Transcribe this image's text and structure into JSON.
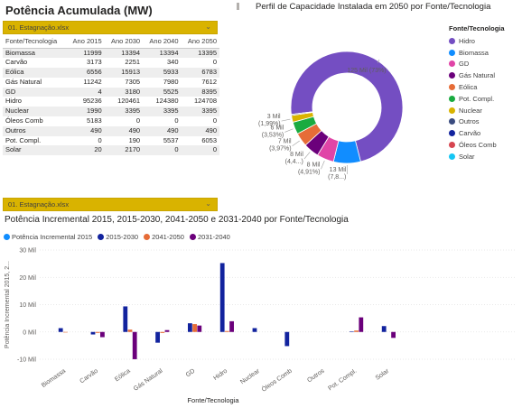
{
  "left_panel": {
    "title": "Potência Acumulada (MW)",
    "slicer_value": "01. Estagnação.xlsx",
    "table": {
      "headers": [
        "Fonte/Tecnologia",
        "Ano 2015",
        "Ano 2030",
        "Ano 2040",
        "Ano 2050"
      ],
      "rows": [
        [
          "Biomassa",
          "11999",
          "13394",
          "13394",
          "13395"
        ],
        [
          "Carvão",
          "3173",
          "2251",
          "340",
          "0"
        ],
        [
          "Eólica",
          "6556",
          "15913",
          "5933",
          "6783"
        ],
        [
          "Gás Natural",
          "11242",
          "7305",
          "7980",
          "7612"
        ],
        [
          "GD",
          "4",
          "3180",
          "5525",
          "8395"
        ],
        [
          "Hidro",
          "95236",
          "120461",
          "124380",
          "124708"
        ],
        [
          "Nuclear",
          "1990",
          "3395",
          "3395",
          "3395"
        ],
        [
          "Óleos Comb",
          "5183",
          "0",
          "0",
          "0"
        ],
        [
          "Outros",
          "490",
          "490",
          "490",
          "490"
        ],
        [
          "Pot. Compl.",
          "0",
          "190",
          "5537",
          "6053"
        ],
        [
          "Solar",
          "20",
          "2170",
          "0",
          "0"
        ]
      ]
    }
  },
  "bottom_slicer_value": "01. Estagnação.xlsx",
  "colors": {
    "Hidro": "#744ec2",
    "Biomassa": "#118dff",
    "GD": "#e044a7",
    "Gás Natural": "#6b007b",
    "Eólica": "#e66c37",
    "Pot. Compl.": "#1aab40",
    "Nuclear": "#d9b300",
    "Outros": "#3a4b7f",
    "Carvão": "#12239e",
    "Óleos Comb": "#d64550",
    "Solar": "#15c6f4",
    "s2015": "#118dff",
    "s2015_2030": "#12239e",
    "s2041_2050": "#e66c37",
    "s2031_2040": "#6b007b",
    "slicer": "#d9b300"
  },
  "chart_data": [
    {
      "type": "pie",
      "title": "Perfil de Capacidade Instalada em 2050 por Fonte/Tecnologia",
      "legend_title": "Fonte/Tecnologia",
      "legend_position": "right",
      "donut": true,
      "slices": [
        {
          "name": "Hidro",
          "value": 124708,
          "label": "125 Mil (73%)"
        },
        {
          "name": "Biomassa",
          "value": 13395,
          "label": "13 Mil (7,8...)"
        },
        {
          "name": "GD",
          "value": 8395,
          "label": "8 Mil (4,91%)"
        },
        {
          "name": "Gás Natural",
          "value": 7612,
          "label": "8 Mil (4,4...)"
        },
        {
          "name": "Eólica",
          "value": 6783,
          "label": "7 Mil (3,97%)"
        },
        {
          "name": "Pot. Compl.",
          "value": 6053,
          "label": "6 Mil (3,53%)"
        },
        {
          "name": "Nuclear",
          "value": 3395,
          "label": "3 Mil (1,99%)"
        },
        {
          "name": "Outros",
          "value": 490,
          "label": ""
        },
        {
          "name": "Carvão",
          "value": 0,
          "label": ""
        },
        {
          "name": "Óleos Comb",
          "value": 0,
          "label": ""
        },
        {
          "name": "Solar",
          "value": 0,
          "label": ""
        }
      ]
    },
    {
      "type": "bar",
      "title": "Potência Incremental 2015, 2015-2030, 2041-2050 e 2031-2040 por Fonte/Tecnologia",
      "xlabel": "Fonte/Tecnologia",
      "ylabel": "Potência Incremental 2015, 2...",
      "ylim": [
        -10000,
        30000
      ],
      "yticks": [
        -10000,
        0,
        10000,
        20000,
        30000
      ],
      "ytick_labels": [
        "-10 Mil",
        "0 Mil",
        "10 Mil",
        "20 Mil",
        "30 Mil"
      ],
      "grid": true,
      "legend_position": "top-left",
      "categories": [
        "Biomassa",
        "Carvão",
        "Eólica",
        "Gás Natural",
        "GD",
        "Hidro",
        "Nuclear",
        "Óleos Comb",
        "Outros",
        "Pot. Compl.",
        "Solar"
      ],
      "series": [
        {
          "name": "Potência Incremental 2015",
          "values": [
            0,
            0,
            0,
            0,
            0,
            0,
            0,
            0,
            0,
            0,
            0
          ]
        },
        {
          "name": "2015-2030",
          "values": [
            1395,
            -922,
            9357,
            -3937,
            3176,
            25225,
            1405,
            -5183,
            0,
            190,
            2150
          ]
        },
        {
          "name": "2041-2050",
          "values": [
            1,
            -340,
            850,
            -368,
            2870,
            328,
            0,
            0,
            0,
            516,
            0
          ]
        },
        {
          "name": "2031-2040",
          "values": [
            0,
            -1911,
            -9980,
            675,
            2345,
            3919,
            0,
            0,
            0,
            5347,
            -2170
          ]
        }
      ]
    }
  ]
}
